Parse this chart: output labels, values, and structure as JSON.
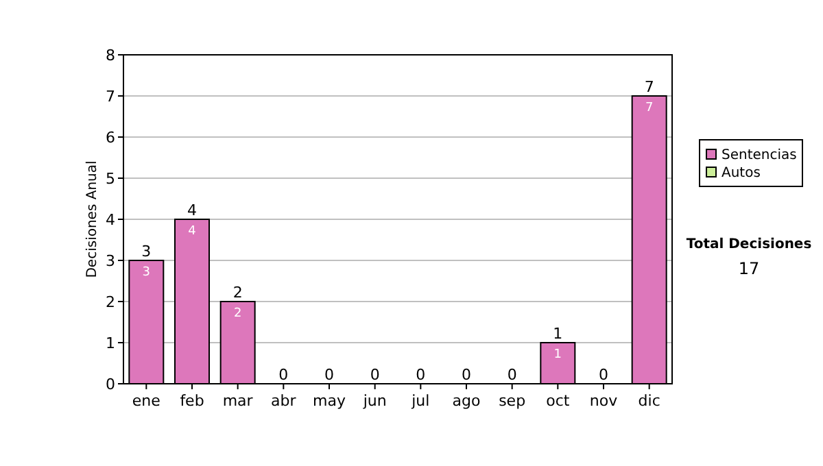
{
  "chart_data": {
    "type": "bar",
    "ylabel": "Decisiones Anual",
    "categories": [
      "ene",
      "feb",
      "mar",
      "abr",
      "may",
      "jun",
      "jul",
      "ago",
      "sep",
      "oct",
      "nov",
      "dic"
    ],
    "series": [
      {
        "name": "Sentencias",
        "color": "#dd77bb",
        "values": [
          3,
          4,
          2,
          0,
          0,
          0,
          0,
          0,
          0,
          1,
          0,
          7
        ],
        "value_labels": [
          "3",
          "4",
          "2",
          null,
          null,
          null,
          null,
          null,
          null,
          "1",
          null,
          "7"
        ]
      },
      {
        "name": "Autos",
        "color": "#ccee99",
        "values": [
          0,
          0,
          0,
          0,
          0,
          0,
          0,
          0,
          0,
          0,
          0,
          0
        ]
      }
    ],
    "totals": [
      "3",
      "4",
      "2",
      "0",
      "0",
      "0",
      "0",
      "0",
      "0",
      "1",
      "0",
      "7"
    ],
    "ylim": [
      0,
      8
    ],
    "yticks": [
      0,
      1,
      2,
      3,
      4,
      5,
      6,
      7,
      8
    ],
    "grid": "y",
    "legend": "right",
    "annotations": [
      "Total Decisiones",
      "17"
    ]
  }
}
